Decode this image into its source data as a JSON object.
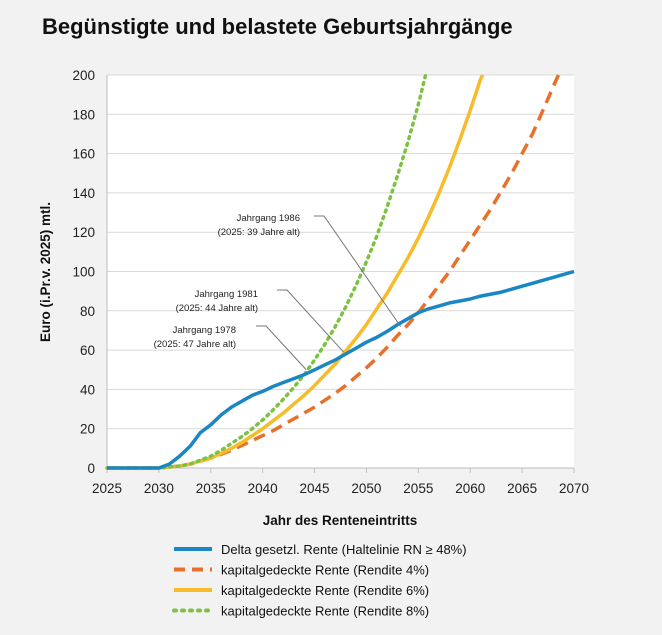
{
  "title": "Begünstigte und belastete Geburtsjahrgänge",
  "chart_data": {
    "type": "line",
    "xlabel": "Jahr des Renteneintritts",
    "ylabel": "Euro (i.Pr.v. 2025) mtl.",
    "xlim": [
      2025,
      2070
    ],
    "ylim": [
      0,
      200
    ],
    "xticks": [
      2025,
      2030,
      2035,
      2040,
      2045,
      2050,
      2055,
      2060,
      2065,
      2070
    ],
    "yticks": [
      0,
      20,
      40,
      60,
      80,
      100,
      120,
      140,
      160,
      180,
      200
    ],
    "grid": "horizontal",
    "legend_position": "bottom",
    "series": [
      {
        "name": "Delta gesetzl. Rente (Haltelinie RN ≥ 48%)",
        "color": "#1a86c4",
        "dash": "solid",
        "points": [
          [
            2025,
            0
          ],
          [
            2030,
            0
          ],
          [
            2031,
            2
          ],
          [
            2032,
            6
          ],
          [
            2033,
            11
          ],
          [
            2034,
            18
          ],
          [
            2035,
            22
          ],
          [
            2036,
            27
          ],
          [
            2037,
            31
          ],
          [
            2038,
            34
          ],
          [
            2039,
            37
          ],
          [
            2040,
            39
          ],
          [
            2041,
            41.5
          ],
          [
            2042,
            43.5
          ],
          [
            2043,
            45.5
          ],
          [
            2044,
            47.5
          ],
          [
            2045,
            50
          ],
          [
            2046,
            52.5
          ],
          [
            2047,
            55
          ],
          [
            2048,
            58
          ],
          [
            2049,
            61
          ],
          [
            2050,
            64
          ],
          [
            2051,
            66.5
          ],
          [
            2052,
            69.5
          ],
          [
            2053,
            73
          ],
          [
            2054,
            76
          ],
          [
            2055,
            79
          ],
          [
            2056,
            81
          ],
          [
            2057,
            82.5
          ],
          [
            2058,
            84
          ],
          [
            2059,
            85
          ],
          [
            2060,
            86
          ],
          [
            2061,
            87.5
          ],
          [
            2062,
            88.5
          ],
          [
            2063,
            89.5
          ],
          [
            2064,
            91
          ],
          [
            2065,
            92.5
          ],
          [
            2066,
            94
          ],
          [
            2067,
            95.5
          ],
          [
            2068,
            97
          ],
          [
            2069,
            98.5
          ],
          [
            2070,
            100
          ]
        ]
      },
      {
        "name": "kapitalgedeckte Rente (Rendite 4%)",
        "color": "#e8702a",
        "dash": "dashed",
        "points": [
          [
            2025,
            0
          ],
          [
            2030,
            0
          ],
          [
            2031,
            0.5
          ],
          [
            2032,
            1
          ],
          [
            2033,
            2
          ],
          [
            2034,
            3.5
          ],
          [
            2035,
            5
          ],
          [
            2036,
            7
          ],
          [
            2037,
            9
          ],
          [
            2038,
            11.5
          ],
          [
            2039,
            14
          ],
          [
            2040,
            16.5
          ],
          [
            2041,
            19
          ],
          [
            2042,
            22
          ],
          [
            2043,
            25
          ],
          [
            2044,
            28
          ],
          [
            2045,
            31
          ],
          [
            2046,
            34.5
          ],
          [
            2047,
            38
          ],
          [
            2048,
            42
          ],
          [
            2049,
            46.5
          ],
          [
            2050,
            51
          ],
          [
            2051,
            56
          ],
          [
            2052,
            61.5
          ],
          [
            2053,
            67.5
          ],
          [
            2054,
            73
          ],
          [
            2055,
            79
          ],
          [
            2056,
            86
          ],
          [
            2057,
            93
          ],
          [
            2058,
            100
          ],
          [
            2059,
            108
          ],
          [
            2060,
            116
          ],
          [
            2061,
            124
          ],
          [
            2062,
            132
          ],
          [
            2063,
            141
          ],
          [
            2064,
            150
          ],
          [
            2065,
            160
          ],
          [
            2066,
            170
          ],
          [
            2067,
            182
          ],
          [
            2068,
            194
          ],
          [
            2068.5,
            200
          ]
        ]
      },
      {
        "name": "kapitalgedeckte Rente (Rendite 6%)",
        "color": "#f8bb2a",
        "dash": "solid",
        "points": [
          [
            2025,
            0
          ],
          [
            2030,
            0
          ],
          [
            2031,
            0.5
          ],
          [
            2032,
            1
          ],
          [
            2033,
            2
          ],
          [
            2034,
            3.5
          ],
          [
            2035,
            5
          ],
          [
            2036,
            7.5
          ],
          [
            2037,
            10
          ],
          [
            2038,
            13
          ],
          [
            2039,
            16.5
          ],
          [
            2040,
            20
          ],
          [
            2041,
            24
          ],
          [
            2042,
            28
          ],
          [
            2043,
            32.5
          ],
          [
            2044,
            37
          ],
          [
            2045,
            42
          ],
          [
            2046,
            47.5
          ],
          [
            2047,
            53
          ],
          [
            2048,
            59.5
          ],
          [
            2049,
            66
          ],
          [
            2050,
            73
          ],
          [
            2051,
            81
          ],
          [
            2052,
            89
          ],
          [
            2053,
            98
          ],
          [
            2054,
            107
          ],
          [
            2055,
            117
          ],
          [
            2056,
            128
          ],
          [
            2057,
            140
          ],
          [
            2058,
            153
          ],
          [
            2059,
            167
          ],
          [
            2060,
            182
          ],
          [
            2061,
            198
          ],
          [
            2061.2,
            200
          ]
        ]
      },
      {
        "name": "kapitalgedeckte Rente (Rendite 8%)",
        "color": "#7cc242",
        "dash": "dotted",
        "points": [
          [
            2025,
            0
          ],
          [
            2030,
            0
          ],
          [
            2031,
            0.5
          ],
          [
            2032,
            1
          ],
          [
            2033,
            2
          ],
          [
            2034,
            4
          ],
          [
            2035,
            6
          ],
          [
            2036,
            9
          ],
          [
            2037,
            12.5
          ],
          [
            2038,
            16
          ],
          [
            2039,
            20
          ],
          [
            2040,
            24.5
          ],
          [
            2041,
            29.5
          ],
          [
            2042,
            35
          ],
          [
            2043,
            41
          ],
          [
            2044,
            47.5
          ],
          [
            2045,
            55
          ],
          [
            2046,
            63
          ],
          [
            2047,
            72
          ],
          [
            2048,
            82
          ],
          [
            2049,
            93
          ],
          [
            2050,
            105
          ],
          [
            2051,
            118
          ],
          [
            2052,
            133
          ],
          [
            2053,
            149
          ],
          [
            2054,
            166
          ],
          [
            2055,
            185
          ],
          [
            2055.7,
            200
          ]
        ]
      }
    ],
    "annotations": [
      {
        "line1": "Jahrgang 1986",
        "line2": "(2025: 39 Jahre alt)",
        "target": [
          2053.3,
          72
        ]
      },
      {
        "line1": "Jahrgang 1981",
        "line2": "(2025: 44 Jahre alt)",
        "target": [
          2047.8,
          59
        ]
      },
      {
        "line1": "Jahrgang 1978",
        "line2": "(2025: 47 Jahre alt)",
        "target": [
          2044.2,
          50
        ]
      }
    ]
  }
}
